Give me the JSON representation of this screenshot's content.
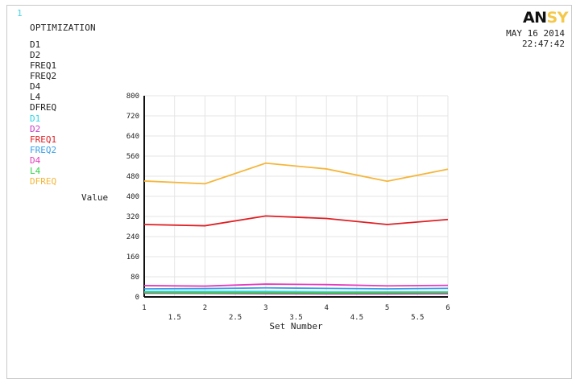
{
  "window_number": "1",
  "plot_title": "OPTIMIZATION",
  "variables": [
    "D1",
    "D2",
    "FREQ1",
    "FREQ2",
    "D4",
    "L4",
    "DFREQ"
  ],
  "legend": [
    {
      "label": "D1",
      "color": "#29d6e6"
    },
    {
      "label": "D2",
      "color": "#c63cc6"
    },
    {
      "label": "FREQ1",
      "color": "#e01f24"
    },
    {
      "label": "FREQ2",
      "color": "#3a9fe6"
    },
    {
      "label": "D4",
      "color": "#e43cbe"
    },
    {
      "label": "L4",
      "color": "#2ed64a"
    },
    {
      "label": "DFREQ",
      "color": "#f5b63a"
    }
  ],
  "date": "MAY 16 2014",
  "time": "22:47:42",
  "logo": {
    "part1": "AN",
    "part2": "SY"
  },
  "chart_data": {
    "type": "line",
    "title": "",
    "xlabel": "Set Number",
    "ylabel": "Value",
    "xlim": [
      1,
      6
    ],
    "ylim": [
      0,
      800
    ],
    "x_ticks": [
      "1",
      "1.5",
      "2",
      "2.5",
      "3",
      "3.5",
      "4",
      "4.5",
      "5",
      "5.5",
      "6"
    ],
    "y_ticks": [
      "0",
      "80",
      "160",
      "240",
      "320",
      "400",
      "480",
      "560",
      "640",
      "720",
      "800"
    ],
    "grid": true,
    "x": [
      1,
      2,
      3,
      4,
      5,
      6
    ],
    "series": [
      {
        "name": "D1",
        "color": "#29d6e6",
        "values": [
          22,
          22,
          22,
          20,
          20,
          20
        ]
      },
      {
        "name": "D2",
        "color": "#c63cc6",
        "values": [
          15,
          14,
          13,
          12,
          12,
          13
        ]
      },
      {
        "name": "FREQ1",
        "color": "#e01f24",
        "values": [
          288,
          283,
          322,
          312,
          288,
          308
        ]
      },
      {
        "name": "FREQ2",
        "color": "#3a9fe6",
        "values": [
          32,
          33,
          36,
          34,
          32,
          34
        ]
      },
      {
        "name": "D4",
        "color": "#e43cbe",
        "values": [
          45,
          43,
          51,
          49,
          44,
          46
        ]
      },
      {
        "name": "L4",
        "color": "#2ed64a",
        "values": [
          18,
          17,
          17,
          16,
          17,
          18
        ]
      },
      {
        "name": "DFREQ",
        "color": "#f5b63a",
        "values": [
          461,
          450,
          532,
          509,
          460,
          508
        ]
      }
    ]
  }
}
